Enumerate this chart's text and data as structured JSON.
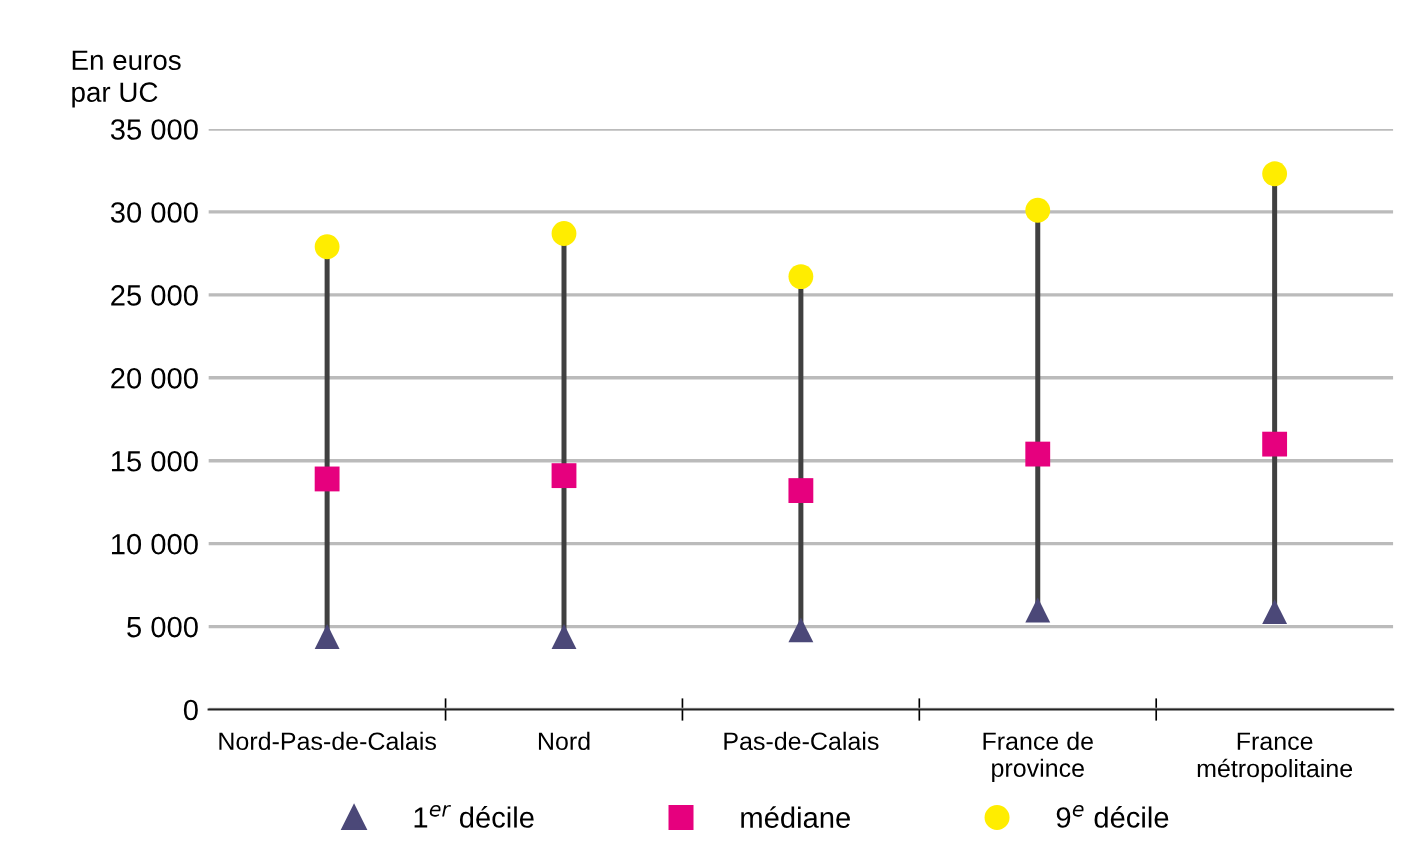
{
  "chart_data": {
    "type": "scatter",
    "ylabel": "En euros\npar UC",
    "categories": [
      "Nord-Pas-de-Calais",
      "Nord",
      "Pas-de-Calais",
      "France de\nprovince",
      "France\nmétropolitaine"
    ],
    "series": [
      {
        "name": "1$^{er}$ décile",
        "color": "#4b4878",
        "marker": "triangle",
        "values": [
          4400,
          4400,
          4800,
          6000,
          5900
        ]
      },
      {
        "name": "médiane",
        "color": "#e6007e",
        "marker": "square",
        "values": [
          13900,
          14100,
          13200,
          15400,
          16000
        ]
      },
      {
        "name": "9$^{e}$ décile",
        "color": "#ffed00",
        "marker": "circle",
        "values": [
          27900,
          28700,
          26100,
          30100,
          32300
        ]
      }
    ],
    "ylim": [
      0,
      35000
    ],
    "yticks": [
      0,
      {
        "value": 5000,
        "label": "5 000"
      },
      {
        "value": 10000,
        "label": "10 000"
      },
      {
        "value": 15000,
        "label": "15 000"
      },
      {
        "value": 20000,
        "label": "20 000"
      },
      {
        "value": 25000,
        "label": "25 000"
      },
      {
        "value": 30000,
        "label": "30 000"
      },
      {
        "value": 35000,
        "label": "35 000"
      }
    ],
    "grid": "y",
    "legend": "bottom"
  }
}
